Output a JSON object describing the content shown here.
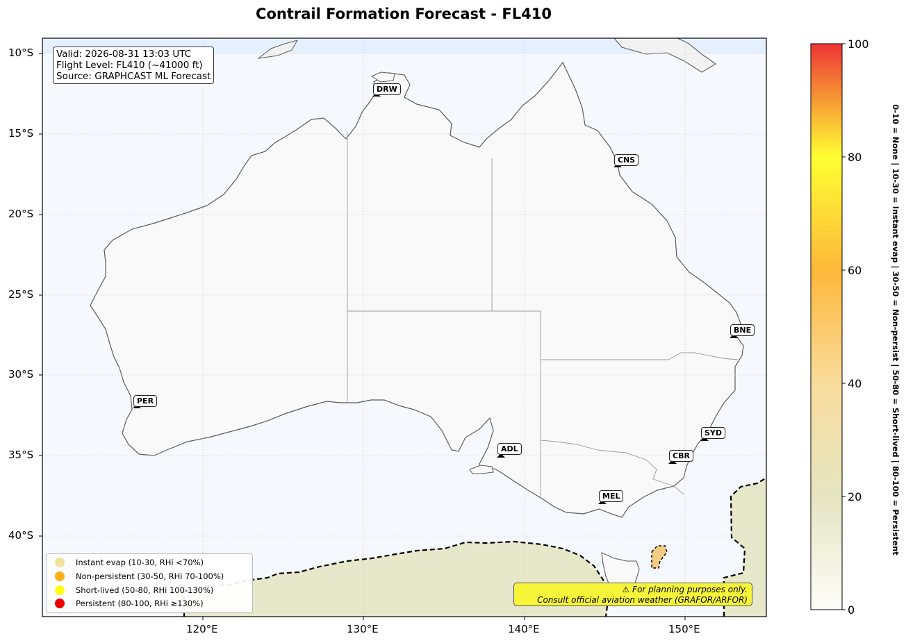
{
  "title": "Contrail Formation Forecast - FL410",
  "info": {
    "valid": "Valid: 2026-08-31 13:03 UTC",
    "flight_level": "Flight Level: FL410 (~41000 ft)",
    "source": "Source: GRAPHCAST ML Forecast"
  },
  "lat_ticks": [
    "10°S",
    "15°S",
    "20°S",
    "25°S",
    "30°S",
    "35°S",
    "40°S"
  ],
  "lon_ticks": [
    "120°E",
    "130°E",
    "140°E",
    "150°E"
  ],
  "airports": [
    "DRW",
    "CNS",
    "BNE",
    "PER",
    "ADL",
    "SYD",
    "CBR",
    "MEL"
  ],
  "legend": [
    {
      "label": "Instant evap (10-30, RHi <70%)",
      "color": "#efe09a"
    },
    {
      "label": "Non-persistent (30-50, RHi 70-100%)",
      "color": "#ffae17"
    },
    {
      "label": "Short-lived (50-80, RHi 100-130%)",
      "color": "#ffff12"
    },
    {
      "label": "Persistent (80-100, RHi ≥130%)",
      "color": "#ee0000"
    }
  ],
  "warning": {
    "line1": "⚠ For planning purposes only.",
    "line2": "Consult official aviation weather (GRAFOR/ARFOR)"
  },
  "colorbar": {
    "ticks": [
      "0",
      "20",
      "40",
      "60",
      "80",
      "100"
    ],
    "label": "0-10 = None  |  10-30 = Instant evap  |  30-50 = Non-persist  |  50-80 = Short-lived  |  80-100 = Persistent"
  },
  "colors": {
    "ocean": "#f5f9fe",
    "land": "#f9f9f9",
    "coast": "#5a5a5a",
    "instant_evap_shading": "#e6e8c9"
  }
}
